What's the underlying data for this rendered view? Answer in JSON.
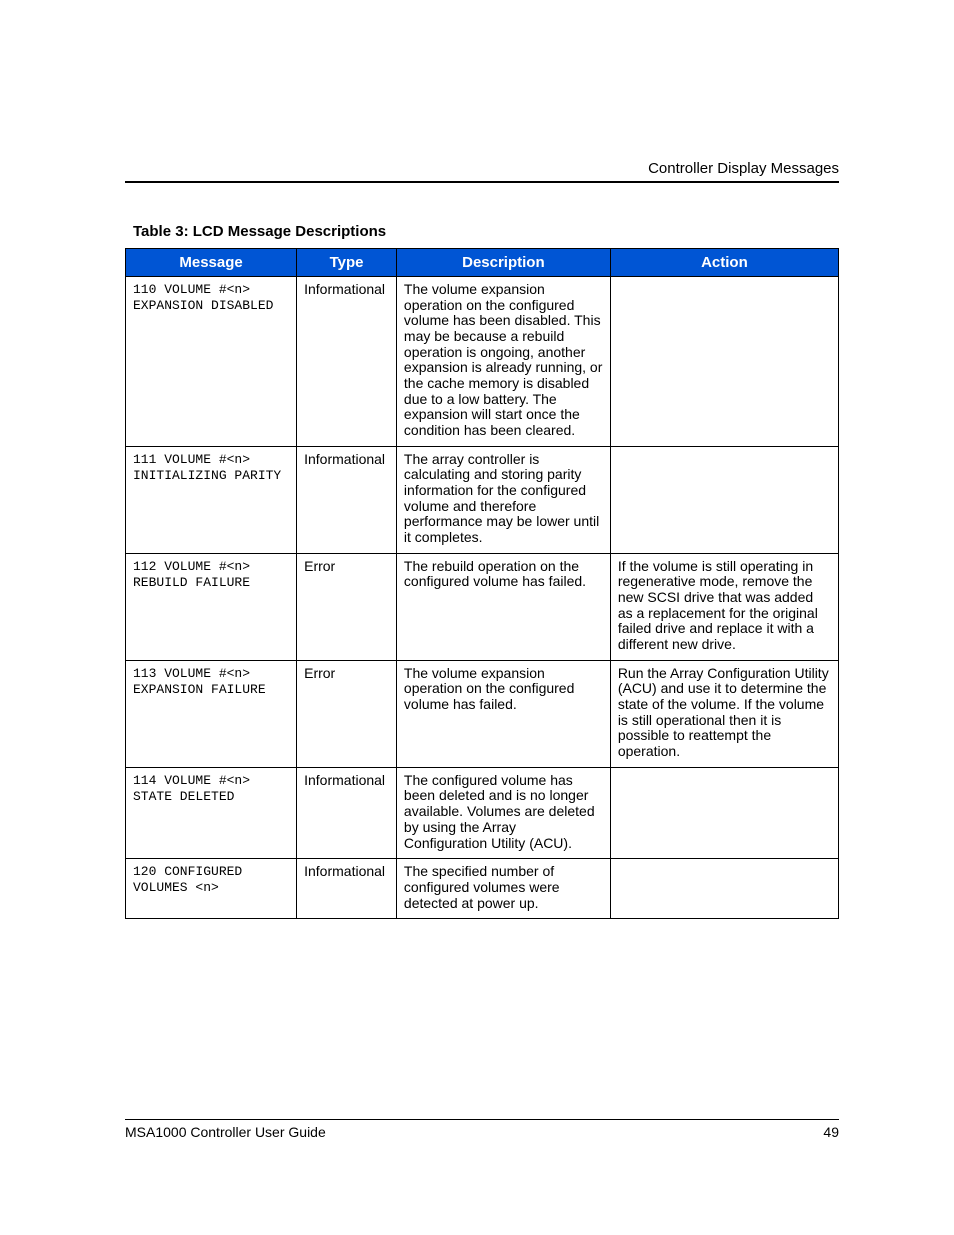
{
  "header": {
    "running_head": "Controller Display Messages"
  },
  "table": {
    "caption": "Table 3:  LCD Message Descriptions",
    "header_bg": "#0055d4",
    "header_fg": "#ffffff",
    "border_color": "#000000",
    "columns": [
      {
        "label": "Message",
        "width_pct": 24
      },
      {
        "label": "Type",
        "width_pct": 14
      },
      {
        "label": "Description",
        "width_pct": 30
      },
      {
        "label": "Action",
        "width_pct": 32
      }
    ],
    "rows": [
      {
        "message": "110 VOLUME #<n> EXPANSION DISABLED",
        "type": "Informational",
        "description": "The volume expansion operation on the configured volume has been disabled. This may be because a rebuild operation is ongoing, another expansion is already running, or the cache memory is disabled due to a low battery. The expansion will start once the condition has been cleared.",
        "action": ""
      },
      {
        "message": "111 VOLUME #<n> INITIALIZING PARITY",
        "type": "Informational",
        "description": "The array controller is calculating and storing parity information for the configured volume and therefore performance may be lower until it completes.",
        "action": ""
      },
      {
        "message": "112 VOLUME #<n> REBUILD FAILURE",
        "type": "Error",
        "description": "The rebuild operation on the configured volume has failed.",
        "action": "If the volume is still operating in regenerative mode, remove the new SCSI drive that was added as a replacement for the original failed drive and replace it with a different new drive."
      },
      {
        "message": "113 VOLUME #<n> EXPANSION FAILURE",
        "type": "Error",
        "description": "The volume expansion operation on the configured volume has failed.",
        "action": "Run the Array Configuration Utility (ACU) and use it to determine the state of the volume. If the volume is still operational then it is possible to reattempt the operation."
      },
      {
        "message": "114 VOLUME #<n> STATE DELETED",
        "type": "Informational",
        "description": "The configured volume has been deleted and is no longer available. Volumes are deleted by using the Array Configuration Utility (ACU).",
        "action": ""
      },
      {
        "message": "120 CONFIGURED VOLUMES <n>",
        "type": "Informational",
        "description": "The specified number of configured volumes were detected at power up.",
        "action": ""
      }
    ]
  },
  "footer": {
    "doc_title": "MSA1000 Controller User Guide",
    "page_number": "49"
  },
  "typography": {
    "body_font": "Arial Narrow",
    "mono_font": "Courier New",
    "header_fontsize_pt": 15,
    "cell_fontsize_pt": 14,
    "mono_fontsize_pt": 13
  }
}
